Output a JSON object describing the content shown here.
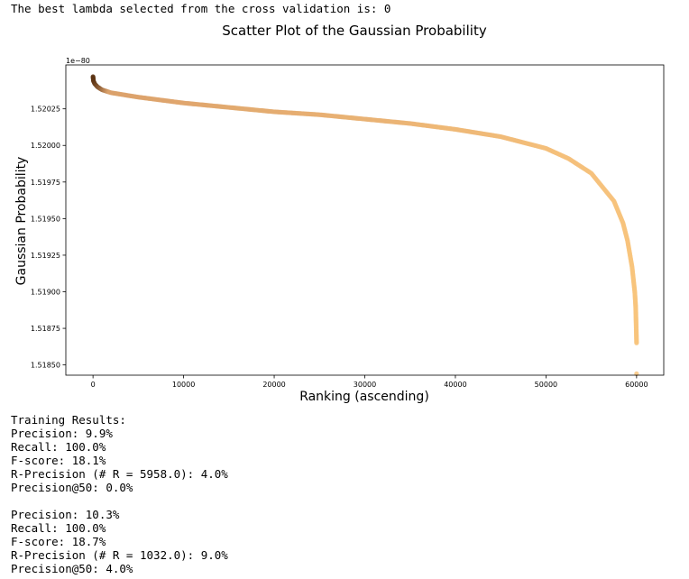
{
  "header_text": "The best lambda selected from the cross validation is: 0",
  "chart_data": {
    "type": "scatter",
    "title": "Scatter Plot of the Gaussian Probability",
    "xlabel": "Ranking (ascending)",
    "ylabel": "Gaussian Probability",
    "y_offset_label": "1e−80",
    "xlim": [
      -3000,
      63000
    ],
    "ylim": [
      1.51843,
      1.52055
    ],
    "xticks": [
      0,
      10000,
      20000,
      30000,
      40000,
      50000,
      60000
    ],
    "xtick_labels": [
      "0",
      "10000",
      "20000",
      "30000",
      "40000",
      "50000",
      "60000"
    ],
    "yticks": [
      1.5185,
      1.51875,
      1.519,
      1.51925,
      1.5195,
      1.51975,
      1.52,
      1.52025
    ],
    "ytick_labels": [
      "1.51850",
      "1.51875",
      "1.51900",
      "1.51925",
      "1.51950",
      "1.51975",
      "1.52000",
      "1.52025"
    ],
    "grid": false,
    "colors": {
      "start": "#5a3212",
      "mid": "#dba16b",
      "end": "#f8c47d"
    },
    "x": [
      0,
      50,
      200,
      500,
      1000,
      2000,
      3000,
      5000,
      7500,
      10000,
      15000,
      20000,
      25000,
      30000,
      35000,
      40000,
      45000,
      50000,
      52500,
      55000,
      57500,
      58500,
      59000,
      59500,
      59800,
      59900,
      59950,
      60000,
      60000
    ],
    "y": [
      1.52047,
      1.52044,
      1.52042,
      1.5204,
      1.52038,
      1.52036,
      1.52035,
      1.52033,
      1.52031,
      1.52029,
      1.52026,
      1.52023,
      1.52021,
      1.52018,
      1.52015,
      1.52011,
      1.52006,
      1.51998,
      1.51991,
      1.51981,
      1.51962,
      1.51947,
      1.51935,
      1.51917,
      1.519,
      1.5189,
      1.51878,
      1.51865,
      1.51844
    ]
  },
  "results": {
    "training_heading": "Training Results:",
    "training": [
      "Precision: 9.9%",
      "Recall: 100.0%",
      "F-score: 18.1%",
      "R-Precision (# R = 5958.0): 4.0%",
      "Precision@50: 0.0%"
    ],
    "second": [
      "Precision: 10.3%",
      "Recall: 100.0%",
      "F-score: 18.7%",
      "R-Precision (# R = 1032.0): 9.0%",
      "Precision@50: 4.0%"
    ]
  }
}
